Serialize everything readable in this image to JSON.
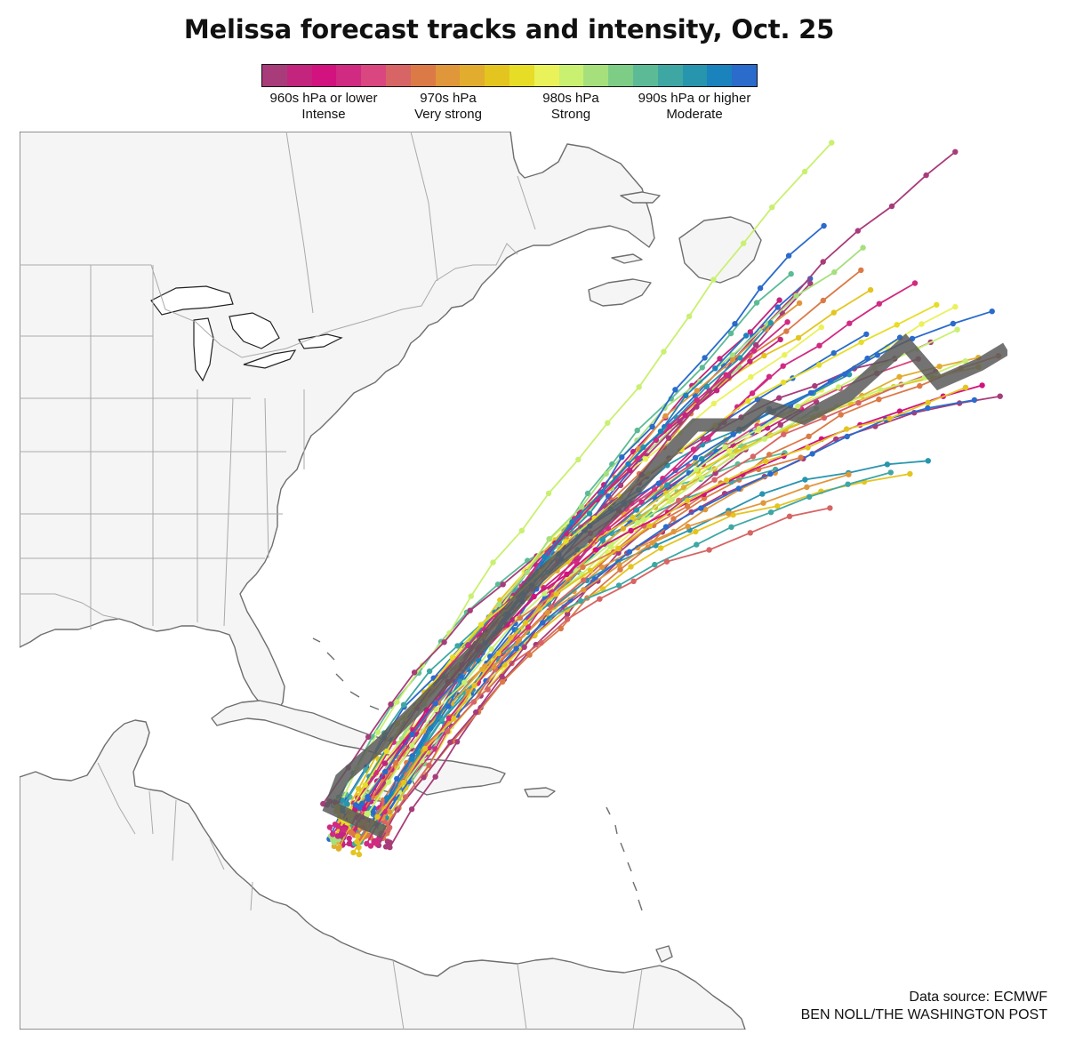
{
  "title": "Melissa forecast tracks and intensity, Oct. 25",
  "legend": {
    "colors": [
      "#a83c7a",
      "#c3247e",
      "#d1127f",
      "#d12a82",
      "#d94680",
      "#d76565",
      "#db7a47",
      "#e0963a",
      "#e2ad2e",
      "#e4c520",
      "#e7dd27",
      "#eaf25a",
      "#c9f070",
      "#a6e07c",
      "#7ecd86",
      "#5cbb96",
      "#3fa7a3",
      "#2895ae",
      "#1a82bd",
      "#2a6bcc"
    ],
    "labels": [
      {
        "line1": "960s hPa or lower",
        "line2": "Intense"
      },
      {
        "line1": "970s hPa",
        "line2": "Very strong"
      },
      {
        "line1": "980s hPa",
        "line2": "Strong"
      },
      {
        "line1": "990s hPa or higher",
        "line2": "Moderate"
      }
    ]
  },
  "map": {
    "land_color": "#f5f5f5",
    "coast_color": "#6e6e6e",
    "border_color": "#aaaaaa",
    "ensemble_track_count": 51,
    "mean_track_color": "#5a5a5a"
  },
  "credits": {
    "source": "Data source: ECMWF",
    "byline": "BEN NOLL/THE WASHINGTON POST"
  }
}
